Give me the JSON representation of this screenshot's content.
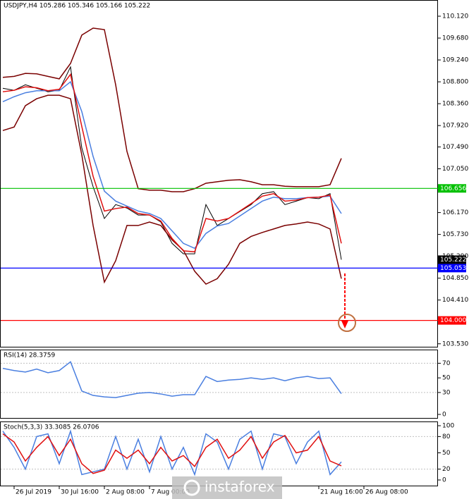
{
  "chart_data": [
    {
      "type": "line",
      "title": "USDJPY,H4  105.286 105.346 105.166 105.222",
      "ylim": [
        103.47,
        110.446
      ],
      "yticks": [
        {
          "value": 110.12,
          "label": "110.120"
        },
        {
          "value": 109.68,
          "label": "109.680"
        },
        {
          "value": 109.24,
          "label": "109.240"
        },
        {
          "value": 108.8,
          "label": "108.800"
        },
        {
          "value": 108.36,
          "label": "108.360"
        },
        {
          "value": 107.92,
          "label": "107.920"
        },
        {
          "value": 107.49,
          "label": "107.490"
        },
        {
          "value": 107.05,
          "label": "107.050"
        },
        {
          "value": 106.17,
          "label": "106.170"
        },
        {
          "value": 105.73,
          "label": "105.730"
        },
        {
          "value": 105.29,
          "label": "105.290"
        },
        {
          "value": 104.85,
          "label": "104.850"
        },
        {
          "value": 104.41,
          "label": "104.410"
        },
        {
          "value": 103.53,
          "label": "103.530"
        }
      ],
      "series": [
        {
          "name": "Close",
          "color": "#000000",
          "values": [
            108.67,
            108.63,
            108.74,
            108.67,
            108.6,
            108.63,
            109.1,
            107.47,
            106.69,
            106.05,
            106.33,
            106.26,
            106.12,
            106.12,
            105.98,
            105.55,
            105.34,
            105.34,
            106.33,
            105.91,
            106.05,
            106.19,
            106.33,
            106.55,
            106.59,
            106.33,
            106.4,
            106.47,
            106.45,
            106.55,
            105.222,
            null,
            null
          ]
        },
        {
          "name": "Upper band",
          "color": "#7a0000",
          "values": [
            108.89,
            108.91,
            108.97,
            108.96,
            108.91,
            108.86,
            109.17,
            109.74,
            109.88,
            109.85,
            108.74,
            107.4,
            106.65,
            106.62,
            106.62,
            106.59,
            106.59,
            106.65,
            106.76,
            106.79,
            106.82,
            106.83,
            106.79,
            106.73,
            106.73,
            106.7,
            106.69,
            106.69,
            106.69,
            106.73,
            107.26,
            null,
            null
          ]
        },
        {
          "name": "Lower band",
          "color": "#7a0000",
          "values": [
            107.82,
            107.89,
            108.32,
            108.46,
            108.53,
            108.53,
            108.46,
            107.33,
            105.91,
            104.77,
            105.2,
            105.91,
            105.91,
            105.98,
            105.91,
            105.62,
            105.41,
            104.99,
            104.73,
            104.84,
            105.13,
            105.55,
            105.69,
            105.77,
            105.84,
            105.91,
            105.94,
            105.98,
            105.94,
            105.84,
            104.84,
            null,
            null
          ]
        },
        {
          "name": "Slow MA",
          "color": "#4a7fe0",
          "values": [
            108.4,
            108.5,
            108.58,
            108.62,
            108.62,
            108.62,
            108.8,
            108.2,
            107.3,
            106.6,
            106.4,
            106.3,
            106.2,
            106.15,
            106.05,
            105.8,
            105.55,
            105.45,
            105.75,
            105.9,
            105.95,
            106.1,
            106.25,
            106.4,
            106.48,
            106.45,
            106.45,
            106.47,
            106.48,
            106.5,
            106.15,
            null,
            null
          ]
        },
        {
          "name": "Fast MA",
          "color": "#e01010",
          "values": [
            108.6,
            108.63,
            108.7,
            108.68,
            108.62,
            108.65,
            108.95,
            107.9,
            106.9,
            106.2,
            106.25,
            106.28,
            106.15,
            106.12,
            106.0,
            105.65,
            105.4,
            105.38,
            106.05,
            106.0,
            106.05,
            106.2,
            106.35,
            106.5,
            106.55,
            106.4,
            106.42,
            106.47,
            106.48,
            106.52,
            105.55,
            null,
            null
          ]
        }
      ],
      "hlines": [
        {
          "value": 106.656,
          "label": "106.656",
          "color": "#00c000"
        },
        {
          "value": 105.053,
          "label": "105.053",
          "color": "#0000ff"
        },
        {
          "value": 104,
          "label": "104.000",
          "color": "#ff0000"
        }
      ],
      "last_price": 105.222,
      "watermark": "instaforex"
    },
    {
      "type": "line",
      "title": "RSI(14) 28.3759",
      "ylim": [
        -5.8,
        88.7
      ],
      "yticks": [
        0,
        30,
        50,
        70
      ],
      "levels": [
        30,
        70
      ],
      "series": [
        {
          "name": "RSI",
          "color": "#4a7fe0",
          "values": [
            63,
            60,
            58,
            62,
            57,
            60,
            72,
            32,
            26,
            24,
            23,
            26,
            29,
            30,
            28,
            25,
            27,
            27,
            52,
            45,
            47,
            48,
            50,
            48,
            50,
            46,
            50,
            52,
            49,
            50,
            28.3759,
            null,
            null
          ]
        }
      ]
    },
    {
      "type": "line",
      "title": "Stoch(5,3,3) 33.3085 26.0706",
      "ylim": [
        -11.7,
        107.8
      ],
      "yticks": [
        0,
        20,
        50,
        80,
        100
      ],
      "levels": [
        20,
        80
      ],
      "categories": [
        null,
        "26 Jul 2019",
        null,
        null,
        null,
        "30 Jul 16:00",
        null,
        null,
        null,
        "2 Aug 08:00",
        null,
        null,
        null,
        "7 Aug 00:00",
        null,
        null,
        null,
        null,
        null,
        null,
        null,
        null,
        null,
        null,
        null,
        null,
        null,
        null,
        "21 Aug 16:00",
        null,
        null,
        null,
        "26 Aug 08:00"
      ],
      "series": [
        {
          "name": "%K",
          "color": "#4a7fe0",
          "values": [
            90,
            60,
            20,
            80,
            85,
            30,
            90,
            10,
            15,
            20,
            80,
            20,
            75,
            15,
            80,
            20,
            60,
            10,
            85,
            70,
            20,
            75,
            90,
            20,
            85,
            80,
            30,
            70,
            90,
            10,
            33.3085,
            null,
            null
          ]
        },
        {
          "name": "%D",
          "color": "#e01010",
          "values": [
            85,
            70,
            35,
            60,
            80,
            45,
            75,
            30,
            12,
            18,
            55,
            40,
            55,
            30,
            60,
            35,
            45,
            25,
            60,
            75,
            40,
            55,
            80,
            40,
            70,
            82,
            50,
            55,
            80,
            35,
            26.0706,
            null,
            null
          ]
        }
      ]
    }
  ]
}
